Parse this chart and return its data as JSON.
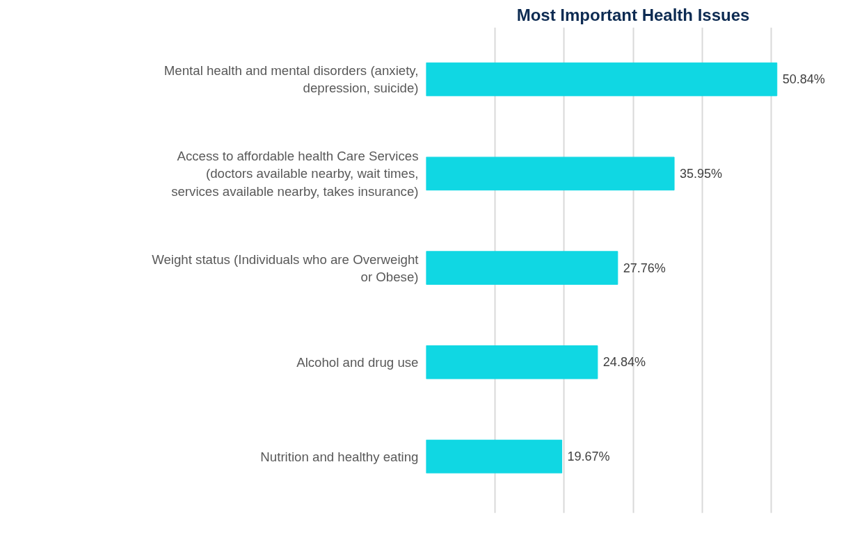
{
  "chart_data": {
    "type": "bar",
    "orientation": "horizontal",
    "title": "Most Important Health Issues",
    "categories": [
      "Mental health and mental disorders (anxiety, depression, suicide)",
      "Access to affordable health Care Services (doctors available nearby, wait times, services available nearby, takes insurance)",
      "Weight status (Individuals who are Overweight or Obese)",
      "Alcohol and drug use",
      "Nutrition and healthy eating"
    ],
    "values": [
      50.84,
      35.95,
      27.76,
      24.84,
      19.67
    ],
    "value_labels": [
      "50.84%",
      "35.95%",
      "27.76%",
      "24.84%",
      "19.67%"
    ],
    "color": "#10d7e3",
    "grid": "x",
    "tick_labels": "y"
  }
}
